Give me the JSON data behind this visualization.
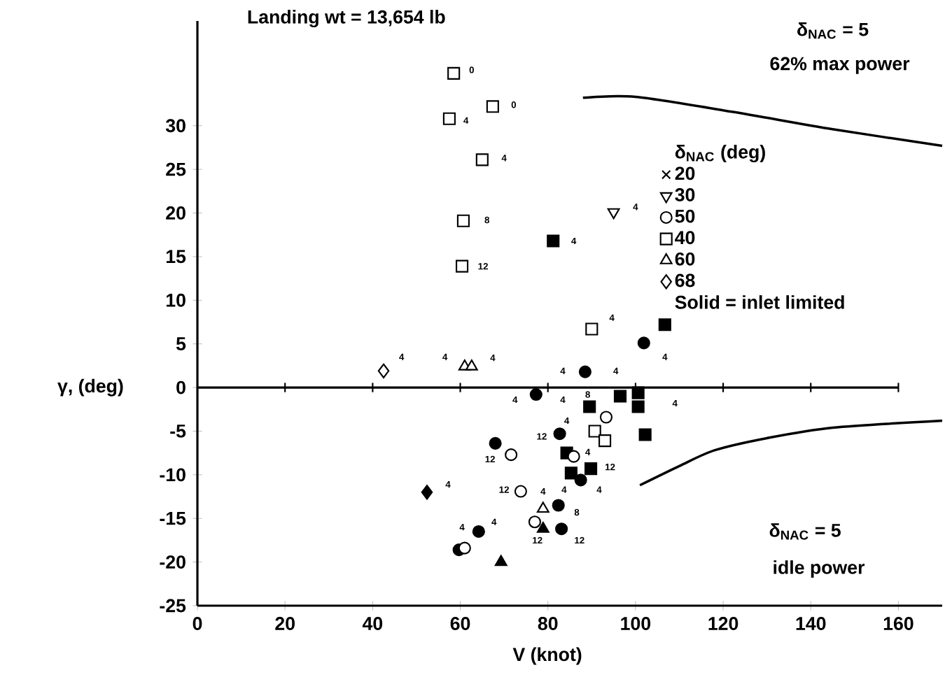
{
  "chart_data": {
    "type": "scatter",
    "title": "Landing wt = 13,654 lb",
    "xlabel": "V (knot)",
    "ylabel": "γ, (deg)",
    "legend_title": "δ$_{NAC}$ (deg)",
    "xlim": [
      0,
      170
    ],
    "ylim": [
      -25,
      42
    ],
    "xticks": [
      0,
      20,
      40,
      60,
      80,
      100,
      120,
      140,
      160
    ],
    "yticks": [
      -25,
      -20,
      -15,
      -10,
      -5,
      0,
      5,
      10,
      15,
      20,
      25,
      30
    ],
    "grid": false,
    "legend": "top right",
    "ref_lines": [
      {
        "axis": "y",
        "value": 0,
        "color": "#000000"
      }
    ],
    "series": [
      {
        "name": "20",
        "marker": "cross",
        "color": "#000000"
      },
      {
        "name": "30",
        "marker": "triangle-down",
        "color": "#000000",
        "x": [
          95
        ],
        "values": [
          20.1
        ]
      },
      {
        "name": "50",
        "marker": "circle",
        "color": "#000000",
        "x": [
          71.6,
          73.8,
          77,
          61,
          85.9,
          93.3
        ],
        "values": [
          -7.7,
          -11.9,
          -15.4,
          -18.4,
          -7.9,
          -3.4
        ]
      },
      {
        "name": "40",
        "marker": "square",
        "color": "#000000",
        "x": [
          58.5,
          67.4,
          57.5,
          65,
          60.7,
          60.4,
          90,
          90.7,
          93
        ],
        "values": [
          36,
          32.2,
          30.8,
          26.1,
          19.1,
          13.9,
          6.7,
          -5,
          -6.1
        ]
      },
      {
        "name": "60",
        "marker": "triangle",
        "color": "#000000",
        "x": [
          61,
          62.6,
          78.9
        ],
        "values": [
          2.4,
          2.4,
          -13.9
        ]
      },
      {
        "name": "68",
        "marker": "diamond",
        "color": "#000000",
        "x": [
          42.5
        ],
        "values": [
          1.9
        ]
      },
      {
        "marker": "circle",
        "color": "#000000",
        "x": [
          101.9,
          88.5,
          77.3,
          82.7,
          68,
          87.5,
          82.4,
          83.1,
          64.2,
          59.7
        ],
        "values": [
          5.1,
          1.8,
          -0.8,
          -5.3,
          -6.4,
          -10.6,
          -13.5,
          -16.2,
          -16.5,
          -18.6
        ]
      },
      {
        "marker": "square",
        "color": "#000000",
        "x": [
          81.2,
          106.7,
          96.5,
          89.5,
          100.6,
          100.6,
          102.2,
          84.3,
          85.3,
          89.8
        ],
        "values": [
          16.8,
          7.2,
          -1,
          -2.2,
          -0.6,
          -2.2,
          -5.4,
          -7.5,
          -9.8,
          -9.3
        ]
      },
      {
        "marker": "triangle",
        "color": "#000000",
        "x": [
          69.3,
          78.9
        ],
        "values": [
          -20,
          -16.2
        ]
      },
      {
        "marker": "diamond",
        "color": "#000000",
        "x": [
          52.4
        ],
        "values": [
          -12
        ]
      },
      {
        "type": "line",
        "marker": "none",
        "color": "#000000",
        "x": [
          88,
          100,
          122,
          145,
          170
        ],
        "values": [
          33.2,
          33.3,
          31.6,
          29.6,
          27.7
        ]
      },
      {
        "type": "line",
        "marker": "none",
        "color": "#000000",
        "x": [
          101,
          110,
          118,
          130,
          145,
          170
        ],
        "values": [
          -11.2,
          -9,
          -7.2,
          -5.8,
          -4.6,
          -3.8
        ]
      }
    ],
    "annotations": [
      "Solid = inlet limited",
      "δ$_{NAC}$ = 5",
      "62% max power",
      "δ$_{NAC}$ = 5",
      "idle power",
      "0",
      "0",
      "4",
      "4",
      "8",
      "12",
      "4",
      "4",
      "4",
      "4",
      "4",
      "4",
      "8",
      "4",
      "4",
      "4",
      "4",
      "4",
      "4",
      "4",
      "12",
      "12",
      "4",
      "12",
      "4",
      "4",
      "4",
      "12",
      "4",
      "8",
      "4",
      "4",
      "12",
      "12"
    ]
  }
}
